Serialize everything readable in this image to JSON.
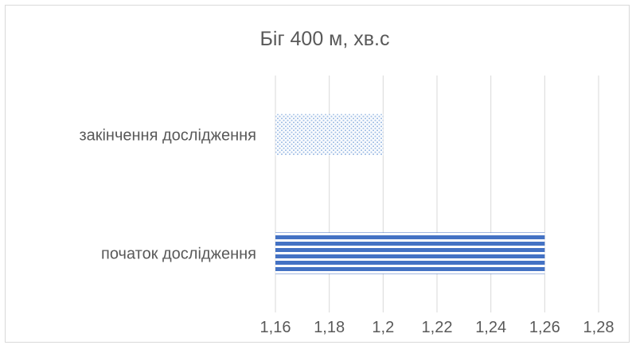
{
  "chart_data": {
    "type": "bar",
    "orientation": "horizontal",
    "title": "Біг 400 м, хв.с",
    "categories": [
      "закінчення дослідження",
      "початок дослідження"
    ],
    "values": [
      1.2,
      1.26
    ],
    "xlim": [
      1.16,
      1.28
    ],
    "xticks": [
      "1,16",
      "1,18",
      "1,2",
      "1,22",
      "1,24",
      "1,26",
      "1,28"
    ],
    "grid": true,
    "legend": "none",
    "colors": {
      "dotted_bar": "#a9c4e8",
      "striped_bar": "#4472c4",
      "grid": "#d9d9d9",
      "text": "#595959"
    }
  }
}
